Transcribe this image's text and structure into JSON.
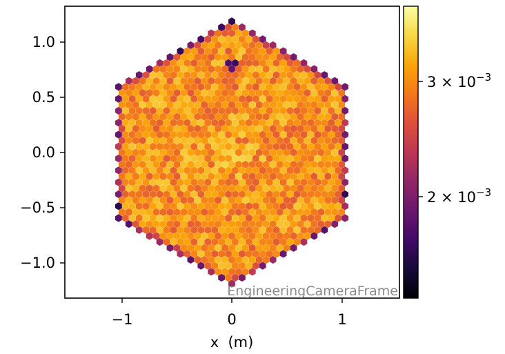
{
  "chart_data": {
    "type": "heatmap",
    "title": "",
    "xlabel": "x  (m)",
    "ylabel": "",
    "frame_label": "EngineeringCameraFrame",
    "x_ticks": [
      "−1",
      "0",
      "1"
    ],
    "x_tick_values": [
      -1,
      0,
      1
    ],
    "y_ticks": [
      "1.0",
      "0.5",
      "0.0",
      "−0.5",
      "−1.0"
    ],
    "y_tick_values": [
      1.0,
      0.5,
      0.0,
      -0.5,
      -1.0
    ],
    "xlim": [
      -1.52,
      1.52
    ],
    "ylim": [
      -1.32,
      1.32
    ],
    "colorbar": {
      "colormap": "inferno",
      "vmin": 0.0013,
      "vmax": 0.0037,
      "ticks": [
        {
          "value": 0.003,
          "base": "3 × 10",
          "exp": "−3"
        },
        {
          "value": 0.002,
          "base": "2 × 10",
          "exp": "−3"
        }
      ]
    },
    "hexagon_radius_m": 1.2,
    "typical_value_range": [
      0.0028,
      0.0034
    ],
    "center_value": 0.0035,
    "edge_value_min": 0.0013,
    "grid": false
  }
}
